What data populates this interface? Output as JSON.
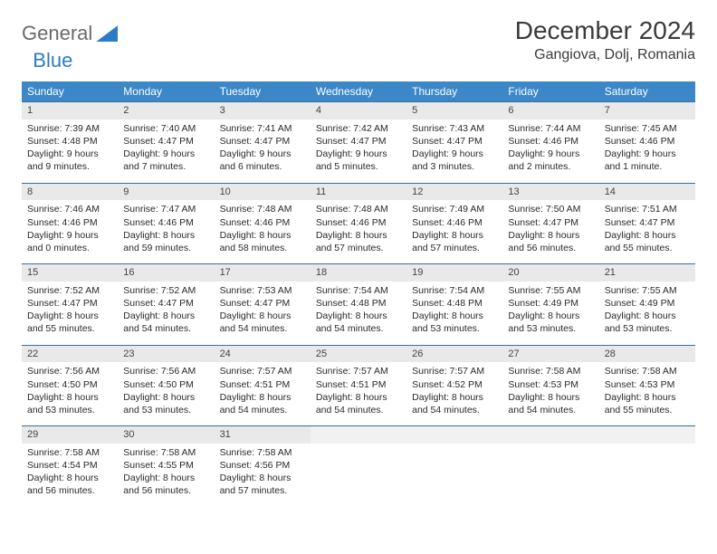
{
  "brand": {
    "word1": "General",
    "word2": "Blue"
  },
  "title": "December 2024",
  "location": "Gangiova, Dolj, Romania",
  "colors": {
    "header_bg": "#3b87c8",
    "header_text": "#ffffff",
    "row_border": "#3b6f9c",
    "daynum_bg": "#e9e9e9",
    "brand_gray": "#6a6a6a",
    "brand_blue": "#2a7cc7"
  },
  "weekdays": [
    "Sunday",
    "Monday",
    "Tuesday",
    "Wednesday",
    "Thursday",
    "Friday",
    "Saturday"
  ],
  "weeks": [
    [
      {
        "n": "1",
        "sr": "Sunrise: 7:39 AM",
        "ss": "Sunset: 4:48 PM",
        "d1": "Daylight: 9 hours",
        "d2": "and 9 minutes."
      },
      {
        "n": "2",
        "sr": "Sunrise: 7:40 AM",
        "ss": "Sunset: 4:47 PM",
        "d1": "Daylight: 9 hours",
        "d2": "and 7 minutes."
      },
      {
        "n": "3",
        "sr": "Sunrise: 7:41 AM",
        "ss": "Sunset: 4:47 PM",
        "d1": "Daylight: 9 hours",
        "d2": "and 6 minutes."
      },
      {
        "n": "4",
        "sr": "Sunrise: 7:42 AM",
        "ss": "Sunset: 4:47 PM",
        "d1": "Daylight: 9 hours",
        "d2": "and 5 minutes."
      },
      {
        "n": "5",
        "sr": "Sunrise: 7:43 AM",
        "ss": "Sunset: 4:47 PM",
        "d1": "Daylight: 9 hours",
        "d2": "and 3 minutes."
      },
      {
        "n": "6",
        "sr": "Sunrise: 7:44 AM",
        "ss": "Sunset: 4:46 PM",
        "d1": "Daylight: 9 hours",
        "d2": "and 2 minutes."
      },
      {
        "n": "7",
        "sr": "Sunrise: 7:45 AM",
        "ss": "Sunset: 4:46 PM",
        "d1": "Daylight: 9 hours",
        "d2": "and 1 minute."
      }
    ],
    [
      {
        "n": "8",
        "sr": "Sunrise: 7:46 AM",
        "ss": "Sunset: 4:46 PM",
        "d1": "Daylight: 9 hours",
        "d2": "and 0 minutes."
      },
      {
        "n": "9",
        "sr": "Sunrise: 7:47 AM",
        "ss": "Sunset: 4:46 PM",
        "d1": "Daylight: 8 hours",
        "d2": "and 59 minutes."
      },
      {
        "n": "10",
        "sr": "Sunrise: 7:48 AM",
        "ss": "Sunset: 4:46 PM",
        "d1": "Daylight: 8 hours",
        "d2": "and 58 minutes."
      },
      {
        "n": "11",
        "sr": "Sunrise: 7:48 AM",
        "ss": "Sunset: 4:46 PM",
        "d1": "Daylight: 8 hours",
        "d2": "and 57 minutes."
      },
      {
        "n": "12",
        "sr": "Sunrise: 7:49 AM",
        "ss": "Sunset: 4:46 PM",
        "d1": "Daylight: 8 hours",
        "d2": "and 57 minutes."
      },
      {
        "n": "13",
        "sr": "Sunrise: 7:50 AM",
        "ss": "Sunset: 4:47 PM",
        "d1": "Daylight: 8 hours",
        "d2": "and 56 minutes."
      },
      {
        "n": "14",
        "sr": "Sunrise: 7:51 AM",
        "ss": "Sunset: 4:47 PM",
        "d1": "Daylight: 8 hours",
        "d2": "and 55 minutes."
      }
    ],
    [
      {
        "n": "15",
        "sr": "Sunrise: 7:52 AM",
        "ss": "Sunset: 4:47 PM",
        "d1": "Daylight: 8 hours",
        "d2": "and 55 minutes."
      },
      {
        "n": "16",
        "sr": "Sunrise: 7:52 AM",
        "ss": "Sunset: 4:47 PM",
        "d1": "Daylight: 8 hours",
        "d2": "and 54 minutes."
      },
      {
        "n": "17",
        "sr": "Sunrise: 7:53 AM",
        "ss": "Sunset: 4:47 PM",
        "d1": "Daylight: 8 hours",
        "d2": "and 54 minutes."
      },
      {
        "n": "18",
        "sr": "Sunrise: 7:54 AM",
        "ss": "Sunset: 4:48 PM",
        "d1": "Daylight: 8 hours",
        "d2": "and 54 minutes."
      },
      {
        "n": "19",
        "sr": "Sunrise: 7:54 AM",
        "ss": "Sunset: 4:48 PM",
        "d1": "Daylight: 8 hours",
        "d2": "and 53 minutes."
      },
      {
        "n": "20",
        "sr": "Sunrise: 7:55 AM",
        "ss": "Sunset: 4:49 PM",
        "d1": "Daylight: 8 hours",
        "d2": "and 53 minutes."
      },
      {
        "n": "21",
        "sr": "Sunrise: 7:55 AM",
        "ss": "Sunset: 4:49 PM",
        "d1": "Daylight: 8 hours",
        "d2": "and 53 minutes."
      }
    ],
    [
      {
        "n": "22",
        "sr": "Sunrise: 7:56 AM",
        "ss": "Sunset: 4:50 PM",
        "d1": "Daylight: 8 hours",
        "d2": "and 53 minutes."
      },
      {
        "n": "23",
        "sr": "Sunrise: 7:56 AM",
        "ss": "Sunset: 4:50 PM",
        "d1": "Daylight: 8 hours",
        "d2": "and 53 minutes."
      },
      {
        "n": "24",
        "sr": "Sunrise: 7:57 AM",
        "ss": "Sunset: 4:51 PM",
        "d1": "Daylight: 8 hours",
        "d2": "and 54 minutes."
      },
      {
        "n": "25",
        "sr": "Sunrise: 7:57 AM",
        "ss": "Sunset: 4:51 PM",
        "d1": "Daylight: 8 hours",
        "d2": "and 54 minutes."
      },
      {
        "n": "26",
        "sr": "Sunrise: 7:57 AM",
        "ss": "Sunset: 4:52 PM",
        "d1": "Daylight: 8 hours",
        "d2": "and 54 minutes."
      },
      {
        "n": "27",
        "sr": "Sunrise: 7:58 AM",
        "ss": "Sunset: 4:53 PM",
        "d1": "Daylight: 8 hours",
        "d2": "and 54 minutes."
      },
      {
        "n": "28",
        "sr": "Sunrise: 7:58 AM",
        "ss": "Sunset: 4:53 PM",
        "d1": "Daylight: 8 hours",
        "d2": "and 55 minutes."
      }
    ],
    [
      {
        "n": "29",
        "sr": "Sunrise: 7:58 AM",
        "ss": "Sunset: 4:54 PM",
        "d1": "Daylight: 8 hours",
        "d2": "and 56 minutes."
      },
      {
        "n": "30",
        "sr": "Sunrise: 7:58 AM",
        "ss": "Sunset: 4:55 PM",
        "d1": "Daylight: 8 hours",
        "d2": "and 56 minutes."
      },
      {
        "n": "31",
        "sr": "Sunrise: 7:58 AM",
        "ss": "Sunset: 4:56 PM",
        "d1": "Daylight: 8 hours",
        "d2": "and 57 minutes."
      },
      {
        "empty": true
      },
      {
        "empty": true
      },
      {
        "empty": true
      },
      {
        "empty": true
      }
    ]
  ]
}
